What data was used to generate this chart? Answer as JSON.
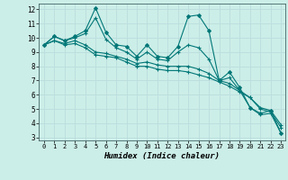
{
  "xlabel": "Humidex (Indice chaleur)",
  "background_color": "#cceee8",
  "grid_color": "#bbdddd",
  "line_color": "#007777",
  "xlim": [
    -0.5,
    23.4
  ],
  "ylim": [
    2.8,
    12.4
  ],
  "yticks": [
    3,
    4,
    5,
    6,
    7,
    8,
    9,
    10,
    11,
    12
  ],
  "xticks": [
    0,
    1,
    2,
    3,
    4,
    5,
    6,
    7,
    8,
    9,
    10,
    11,
    12,
    13,
    14,
    15,
    16,
    17,
    18,
    19,
    20,
    21,
    22,
    23
  ],
  "series": [
    [
      9.5,
      10.1,
      9.8,
      10.1,
      10.5,
      12.1,
      10.4,
      9.5,
      9.4,
      8.7,
      9.5,
      8.7,
      8.6,
      9.4,
      11.5,
      11.6,
      10.5,
      7.0,
      7.6,
      6.5,
      5.1,
      4.7,
      4.9,
      3.3
    ],
    [
      9.5,
      10.1,
      9.8,
      10.0,
      10.3,
      11.4,
      9.9,
      9.3,
      9.0,
      8.5,
      9.0,
      8.5,
      8.4,
      9.0,
      9.5,
      9.3,
      8.5,
      7.0,
      7.2,
      6.3,
      5.1,
      4.6,
      4.7,
      3.3
    ],
    [
      9.5,
      9.8,
      9.6,
      9.8,
      9.5,
      9.0,
      8.9,
      8.7,
      8.5,
      8.2,
      8.3,
      8.1,
      8.0,
      8.0,
      8.0,
      7.8,
      7.5,
      7.0,
      6.8,
      6.3,
      5.8,
      5.1,
      4.9,
      3.9
    ],
    [
      9.5,
      9.8,
      9.5,
      9.6,
      9.3,
      8.8,
      8.7,
      8.6,
      8.3,
      8.0,
      8.0,
      7.8,
      7.7,
      7.7,
      7.6,
      7.4,
      7.2,
      6.9,
      6.6,
      6.2,
      5.8,
      5.0,
      4.8,
      3.7
    ]
  ],
  "marker_styles": [
    "D",
    "+",
    "+",
    "+"
  ],
  "marker_sizes": [
    2.0,
    3.5,
    3.5,
    3.5
  ],
  "linewidths": [
    0.8,
    0.8,
    0.8,
    0.8
  ]
}
